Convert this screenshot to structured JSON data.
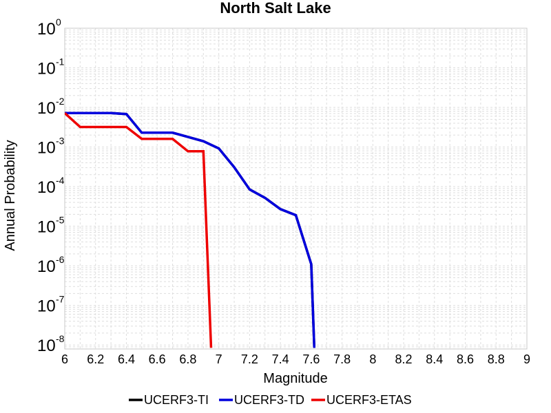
{
  "chart_data": {
    "type": "line",
    "title": "North Salt Lake",
    "xlabel": "Magnitude",
    "ylabel": "Annual Probability",
    "xlim": [
      6,
      9
    ],
    "ylim_log10": [
      -8.1,
      0
    ],
    "yscale": "log",
    "grid": true,
    "legend_position": "bottom",
    "x_ticks": [
      "6",
      "6.2",
      "6.4",
      "6.6",
      "6.8",
      "7",
      "7.2",
      "7.4",
      "7.6",
      "7.8",
      "8",
      "8.2",
      "8.4",
      "8.6",
      "8.8",
      "9"
    ],
    "y_ticks": [
      {
        "base": "10",
        "exp": "0",
        "log10": 0
      },
      {
        "base": "10",
        "exp": "-1",
        "log10": -1
      },
      {
        "base": "10",
        "exp": "-2",
        "log10": -2
      },
      {
        "base": "10",
        "exp": "-3",
        "log10": -3
      },
      {
        "base": "10",
        "exp": "-4",
        "log10": -4
      },
      {
        "base": "10",
        "exp": "-5",
        "log10": -5
      },
      {
        "base": "10",
        "exp": "-6",
        "log10": -6
      },
      {
        "base": "10",
        "exp": "-7",
        "log10": -7
      },
      {
        "base": "10",
        "exp": "-8",
        "log10": -8
      }
    ],
    "series": [
      {
        "name": "UCERF3-TI",
        "color": "#000000",
        "x": [
          6.0,
          6.1,
          6.2,
          6.3,
          6.4,
          6.5,
          6.6,
          6.7,
          6.8,
          6.9,
          7.0,
          7.1,
          7.2,
          7.3,
          7.4,
          7.5,
          7.6,
          7.62
        ],
        "y": [
          0.0072,
          0.0072,
          0.0072,
          0.0072,
          0.0068,
          0.0023,
          0.0023,
          0.0023,
          0.0018,
          0.0014,
          0.00092,
          0.00031,
          8.5e-05,
          5.2e-05,
          2.7e-05,
          1.9e-05,
          1.1e-06,
          8.5e-09
        ]
      },
      {
        "name": "UCERF3-TD",
        "color": "#0000dd",
        "x": [
          6.0,
          6.1,
          6.2,
          6.3,
          6.4,
          6.5,
          6.6,
          6.7,
          6.8,
          6.9,
          7.0,
          7.1,
          7.2,
          7.3,
          7.4,
          7.5,
          7.6,
          7.62
        ],
        "y": [
          0.0072,
          0.0072,
          0.0072,
          0.0072,
          0.0068,
          0.0023,
          0.0023,
          0.0023,
          0.0018,
          0.0014,
          0.00092,
          0.00031,
          8.5e-05,
          5.2e-05,
          2.7e-05,
          1.9e-05,
          1.1e-06,
          8.5e-09
        ]
      },
      {
        "name": "UCERF3-ETAS",
        "color": "#ee0000",
        "x": [
          6.0,
          6.1,
          6.2,
          6.3,
          6.4,
          6.5,
          6.6,
          6.7,
          6.8,
          6.9,
          6.95
        ],
        "y": [
          0.0072,
          0.0032,
          0.0032,
          0.0032,
          0.0032,
          0.0016,
          0.0016,
          0.0016,
          0.00078,
          0.00078,
          8.5e-09
        ]
      }
    ]
  }
}
